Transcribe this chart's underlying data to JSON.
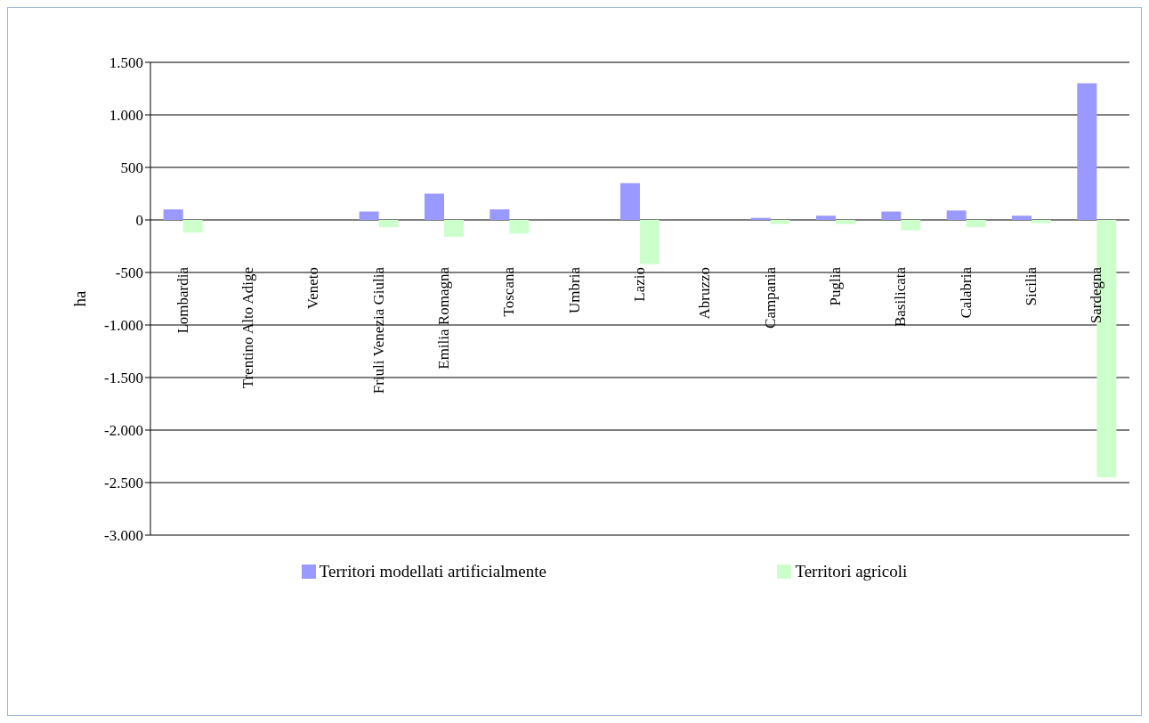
{
  "chart_data": {
    "type": "bar",
    "ylabel": "ha",
    "categories": [
      "Lombardia",
      "Trentino Alto Adige",
      "Veneto",
      "Friuli Venezia Giulia",
      "Emilia Romagna",
      "Toscana",
      "Umbria",
      "Lazio",
      "Abruzzo",
      "Campania",
      "Puglia",
      "Basilicata",
      "Calabria",
      "Sicilia",
      "Sardegna"
    ],
    "series": [
      {
        "name": "Territori modellati artificialmente",
        "color": "#9999ff",
        "values": [
          100,
          0,
          0,
          80,
          250,
          100,
          0,
          350,
          0,
          20,
          40,
          80,
          90,
          40,
          1300
        ]
      },
      {
        "name": "Territori agricoli",
        "color": "#ccffcc",
        "values": [
          -120,
          0,
          0,
          -70,
          -160,
          -130,
          0,
          -420,
          0,
          -40,
          -40,
          -100,
          -70,
          -30,
          -2450
        ]
      }
    ],
    "ylim": [
      -3000,
      1500
    ],
    "yticks": [
      {
        "value": -3000,
        "label": "-3.000"
      },
      {
        "value": -2500,
        "label": "-2.500"
      },
      {
        "value": -2000,
        "label": "-2.000"
      },
      {
        "value": -1500,
        "label": "-1.500"
      },
      {
        "value": -1000,
        "label": "-1.000"
      },
      {
        "value": -500,
        "label": "-500"
      },
      {
        "value": 0,
        "label": "0"
      },
      {
        "value": 500,
        "label": "500"
      },
      {
        "value": 1000,
        "label": "1.000"
      },
      {
        "value": 1500,
        "label": "1.500"
      }
    ],
    "grid": "y",
    "legend": "bottom"
  }
}
